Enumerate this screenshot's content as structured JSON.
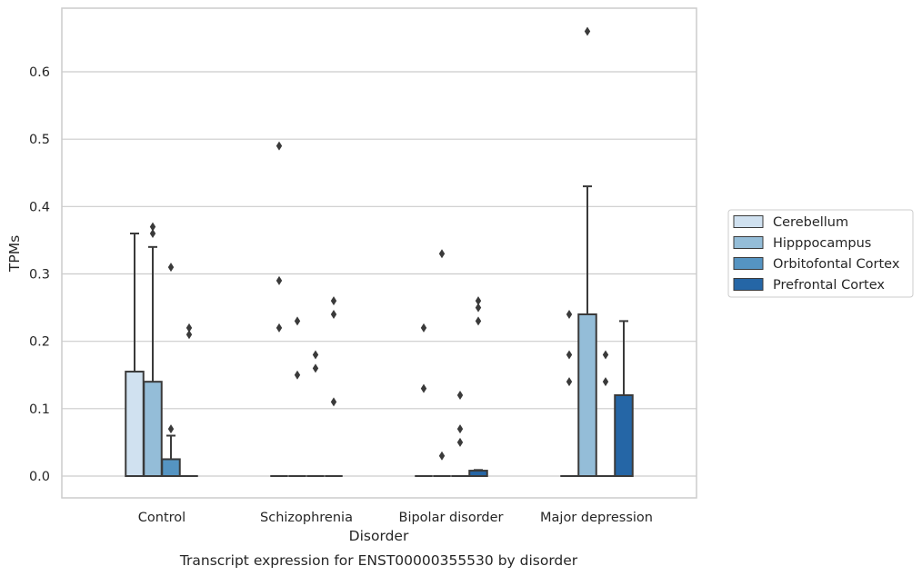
{
  "chart_data": {
    "type": "box",
    "xlabel": "Disorder",
    "ylabel": "TPMs",
    "caption": "Transcript expression for ENST00000355530 by disorder",
    "categories": [
      "Control",
      "Schizophrenia",
      "Bipolar disorder",
      "Major depression"
    ],
    "ylim": [
      -0.032,
      0.69
    ],
    "yticks": [
      0.0,
      0.1,
      0.2,
      0.3,
      0.4,
      0.5,
      0.6
    ],
    "ytick_labels": [
      "0.0",
      "0.1",
      "0.2",
      "0.3",
      "0.4",
      "0.5",
      "0.6"
    ],
    "grid": "horizontal",
    "legend_position": "right",
    "series": [
      {
        "name": "Cerebellum",
        "color": "#d0e1f0",
        "boxes": [
          {
            "q1": 0.0,
            "median": 0.0,
            "q3": 0.155,
            "whisker_low": 0.0,
            "whisker_high": 0.36,
            "outliers": []
          },
          {
            "q1": 0.0,
            "median": 0.0,
            "q3": 0.0,
            "whisker_low": 0.0,
            "whisker_high": 0.0,
            "outliers": [
              0.49,
              0.29,
              0.22
            ]
          },
          {
            "q1": 0.0,
            "median": 0.0,
            "q3": 0.0,
            "whisker_low": 0.0,
            "whisker_high": 0.0,
            "outliers": [
              0.22,
              0.13
            ]
          },
          {
            "q1": 0.0,
            "median": 0.0,
            "q3": 0.0,
            "whisker_low": 0.0,
            "whisker_high": 0.0,
            "outliers": [
              0.24,
              0.18,
              0.14
            ]
          }
        ]
      },
      {
        "name": "Hipppocampus",
        "color": "#94bdd8",
        "boxes": [
          {
            "q1": 0.0,
            "median": 0.0,
            "q3": 0.14,
            "whisker_low": 0.0,
            "whisker_high": 0.34,
            "outliers": [
              0.37,
              0.36
            ]
          },
          {
            "q1": 0.0,
            "median": 0.0,
            "q3": 0.0,
            "whisker_low": 0.0,
            "whisker_high": 0.0,
            "outliers": [
              0.23,
              0.15
            ]
          },
          {
            "q1": 0.0,
            "median": 0.0,
            "q3": 0.0,
            "whisker_low": 0.0,
            "whisker_high": 0.0,
            "outliers": [
              0.33,
              0.03
            ]
          },
          {
            "q1": 0.0,
            "median": 0.0,
            "q3": 0.24,
            "whisker_low": 0.0,
            "whisker_high": 0.43,
            "outliers": [
              0.66
            ]
          }
        ]
      },
      {
        "name": "Orbitofontal Cortex",
        "color": "#5594c2",
        "boxes": [
          {
            "q1": 0.0,
            "median": 0.0,
            "q3": 0.025,
            "whisker_low": 0.0,
            "whisker_high": 0.06,
            "outliers": [
              0.31,
              0.07
            ]
          },
          {
            "q1": 0.0,
            "median": 0.0,
            "q3": 0.0,
            "whisker_low": 0.0,
            "whisker_high": 0.0,
            "outliers": [
              0.18,
              0.16
            ]
          },
          {
            "q1": 0.0,
            "median": 0.0,
            "q3": 0.0,
            "whisker_low": 0.0,
            "whisker_high": 0.0,
            "outliers": [
              0.12,
              0.07,
              0.05
            ]
          },
          {
            "q1": 0.0,
            "median": 0.0,
            "q3": 0.0,
            "whisker_low": 0.0,
            "whisker_high": 0.0,
            "outliers": [
              0.18,
              0.14
            ]
          }
        ]
      },
      {
        "name": "Prefrontal Cortex",
        "color": "#2566a6",
        "boxes": [
          {
            "q1": 0.0,
            "median": 0.0,
            "q3": 0.0,
            "whisker_low": 0.0,
            "whisker_high": 0.0,
            "outliers": [
              0.22,
              0.21
            ]
          },
          {
            "q1": 0.0,
            "median": 0.0,
            "q3": 0.0,
            "whisker_low": 0.0,
            "whisker_high": 0.0,
            "outliers": [
              0.26,
              0.24,
              0.11
            ]
          },
          {
            "q1": 0.0,
            "median": 0.0,
            "q3": 0.008,
            "whisker_low": 0.0,
            "whisker_high": 0.009,
            "outliers": [
              0.26,
              0.25,
              0.23
            ]
          },
          {
            "q1": 0.0,
            "median": 0.0,
            "q3": 0.12,
            "whisker_low": 0.0,
            "whisker_high": 0.23,
            "outliers": []
          }
        ]
      }
    ]
  }
}
